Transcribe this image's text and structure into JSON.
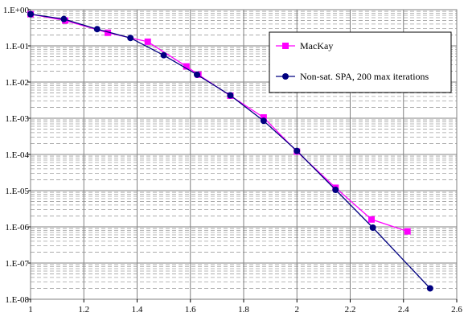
{
  "chart_data": {
    "type": "line",
    "title": "",
    "xlabel": "",
    "ylabel": "",
    "xlim": [
      1,
      2.6
    ],
    "ylim": [
      1e-08,
      1
    ],
    "y_scale": "log",
    "grid": true,
    "legend_position": "top-right",
    "x_ticks": [
      "1",
      "1.2",
      "1.4",
      "1.6",
      "1.8",
      "2",
      "2.2",
      "2.4",
      "2.6"
    ],
    "y_ticks": [
      "1.E-08",
      "1.E-07",
      "1.E-06",
      "1.E-05",
      "1.E-04",
      "1.E-03",
      "1.E-02",
      "1.E-01",
      "1.E+00"
    ],
    "series": [
      {
        "name": "MacKay",
        "color": "#ff00ff",
        "marker": "square",
        "x": [
          1.0,
          1.13,
          1.29,
          1.44,
          1.585,
          1.63,
          1.75,
          1.875,
          2.0,
          2.145,
          2.28,
          2.415
        ],
        "y": [
          0.75,
          0.5,
          0.23,
          0.13,
          0.027,
          0.016,
          0.0042,
          0.00105,
          0.00012,
          1.2e-05,
          1.6e-06,
          7.5e-07
        ]
      },
      {
        "name": "Non-sat. SPA, 200 max iterations",
        "color": "#000080",
        "marker": "circle",
        "x": [
          1.0,
          1.125,
          1.25,
          1.375,
          1.5,
          1.625,
          1.75,
          1.875,
          2.0,
          2.145,
          2.285,
          2.5
        ],
        "y": [
          0.75,
          0.55,
          0.29,
          0.165,
          0.055,
          0.016,
          0.0043,
          0.00085,
          0.000125,
          1.05e-05,
          9.5e-07,
          2e-08
        ]
      }
    ]
  }
}
